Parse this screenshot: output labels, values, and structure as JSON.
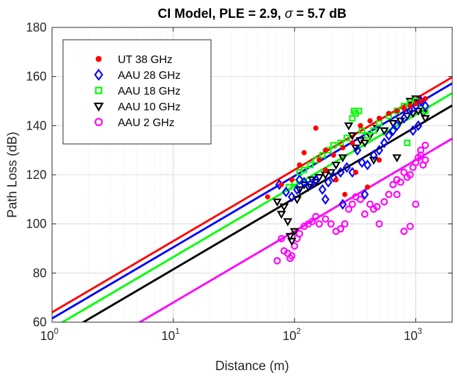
{
  "chart_data": {
    "type": "scatter",
    "title": "CI Model, PLE = 2.9, σ = 5.7 dB",
    "xlabel": "Distance (m)",
    "ylabel": "Path Loss (dB)",
    "xscale": "log",
    "xlim": [
      1,
      2000
    ],
    "ylim": [
      60,
      180
    ],
    "xticks": [
      1,
      10,
      100,
      1000
    ],
    "xtick_labels": [
      [
        "10",
        "0"
      ],
      [
        "10",
        "1"
      ],
      [
        "10",
        "2"
      ],
      [
        "10",
        "3"
      ]
    ],
    "yticks": [
      60,
      80,
      100,
      120,
      140,
      160,
      180
    ],
    "ytick_labels": [
      "60",
      "80",
      "100",
      "120",
      "140",
      "160",
      "180"
    ],
    "grid": true,
    "legend_position": "top-left",
    "series": [
      {
        "name": "UT 38 GHz",
        "color": "#ff0000",
        "marker": "asterisk",
        "points": [
          [
            60,
            111
          ],
          [
            78,
            116
          ],
          [
            95,
            118
          ],
          [
            110,
            124
          ],
          [
            120,
            129
          ],
          [
            150,
            139
          ],
          [
            180,
            130
          ],
          [
            210,
            128
          ],
          [
            250,
            131
          ],
          [
            300,
            133
          ],
          [
            350,
            140
          ],
          [
            420,
            142
          ],
          [
            500,
            143
          ],
          [
            600,
            145
          ],
          [
            700,
            146
          ],
          [
            800,
            147
          ],
          [
            900,
            148
          ],
          [
            1000,
            149
          ],
          [
            1100,
            150
          ],
          [
            1200,
            151
          ],
          [
            180,
            122
          ],
          [
            220,
            118
          ],
          [
            260,
            112
          ],
          [
            320,
            121
          ],
          [
            400,
            115
          ],
          [
            160,
            126
          ],
          [
            500,
            126
          ]
        ]
      },
      {
        "name": "AAU 28 GHz",
        "color": "#0000ff",
        "marker": "diamond",
        "points": [
          [
            75,
            116
          ],
          [
            85,
            113
          ],
          [
            95,
            111
          ],
          [
            105,
            114
          ],
          [
            110,
            118
          ],
          [
            120,
            117
          ],
          [
            135,
            116
          ],
          [
            150,
            118
          ],
          [
            170,
            114
          ],
          [
            190,
            117
          ],
          [
            210,
            119
          ],
          [
            240,
            121
          ],
          [
            270,
            123
          ],
          [
            300,
            121
          ],
          [
            330,
            130
          ],
          [
            360,
            125
          ],
          [
            400,
            124
          ],
          [
            450,
            128
          ],
          [
            500,
            130
          ],
          [
            550,
            133
          ],
          [
            600,
            136
          ],
          [
            650,
            138
          ],
          [
            700,
            140
          ],
          [
            800,
            143
          ],
          [
            900,
            146
          ],
          [
            1000,
            148
          ],
          [
            1100,
            150
          ],
          [
            1200,
            148
          ],
          [
            180,
            110
          ],
          [
            250,
            108
          ],
          [
            380,
            112
          ],
          [
            1050,
            140
          ],
          [
            950,
            138
          ]
        ]
      },
      {
        "name": "AAU 18 GHz",
        "color": "#00ff00",
        "marker": "square",
        "points": [
          [
            90,
            115
          ],
          [
            100,
            117
          ],
          [
            110,
            121
          ],
          [
            120,
            122
          ],
          [
            135,
            124
          ],
          [
            150,
            126
          ],
          [
            170,
            128
          ],
          [
            190,
            130
          ],
          [
            210,
            132
          ],
          [
            240,
            133
          ],
          [
            270,
            135
          ],
          [
            300,
            143
          ],
          [
            310,
            146
          ],
          [
            320,
            145
          ],
          [
            340,
            146
          ],
          [
            360,
            138
          ],
          [
            400,
            136
          ],
          [
            450,
            138
          ],
          [
            500,
            141
          ],
          [
            600,
            144
          ],
          [
            700,
            146
          ],
          [
            800,
            148
          ],
          [
            900,
            149
          ],
          [
            1000,
            150
          ],
          [
            1100,
            149
          ],
          [
            850,
            133
          ],
          [
            1200,
            146
          ]
        ]
      },
      {
        "name": "AAU 10 GHz",
        "color": "#000000",
        "marker": "triangle-down",
        "points": [
          [
            72,
            109
          ],
          [
            78,
            104
          ],
          [
            82,
            107
          ],
          [
            88,
            101
          ],
          [
            92,
            95
          ],
          [
            95,
            93
          ],
          [
            100,
            97
          ],
          [
            105,
            110
          ],
          [
            110,
            114
          ],
          [
            120,
            116
          ],
          [
            130,
            115
          ],
          [
            140,
            118
          ],
          [
            150,
            117
          ],
          [
            160,
            119
          ],
          [
            180,
            120
          ],
          [
            200,
            121
          ],
          [
            220,
            124
          ],
          [
            250,
            127
          ],
          [
            280,
            140
          ],
          [
            300,
            136
          ],
          [
            320,
            131
          ],
          [
            350,
            134
          ],
          [
            380,
            133
          ],
          [
            420,
            136
          ],
          [
            480,
            139
          ],
          [
            550,
            138
          ],
          [
            650,
            141
          ],
          [
            750,
            142
          ],
          [
            850,
            144
          ],
          [
            950,
            145
          ],
          [
            1050,
            146
          ],
          [
            1150,
            145
          ],
          [
            900,
            150
          ],
          [
            1000,
            151
          ],
          [
            450,
            126
          ],
          [
            700,
            127
          ],
          [
            1200,
            143
          ]
        ]
      },
      {
        "name": "AAU 2 GHz",
        "color": "#ff00ff",
        "marker": "circle",
        "points": [
          [
            72,
            85
          ],
          [
            78,
            94
          ],
          [
            82,
            89
          ],
          [
            88,
            88
          ],
          [
            92,
            86
          ],
          [
            95,
            87
          ],
          [
            100,
            91
          ],
          [
            105,
            94
          ],
          [
            110,
            96
          ],
          [
            120,
            99
          ],
          [
            130,
            100
          ],
          [
            140,
            101
          ],
          [
            150,
            103
          ],
          [
            160,
            100
          ],
          [
            180,
            102
          ],
          [
            200,
            100
          ],
          [
            220,
            97
          ],
          [
            240,
            98
          ],
          [
            260,
            100
          ],
          [
            280,
            106
          ],
          [
            300,
            108
          ],
          [
            320,
            111
          ],
          [
            350,
            110
          ],
          [
            380,
            104
          ],
          [
            420,
            108
          ],
          [
            450,
            106
          ],
          [
            480,
            107
          ],
          [
            500,
            100
          ],
          [
            550,
            109
          ],
          [
            600,
            112
          ],
          [
            650,
            116
          ],
          [
            700,
            118
          ],
          [
            750,
            117
          ],
          [
            800,
            121
          ],
          [
            850,
            119
          ],
          [
            900,
            120
          ],
          [
            950,
            123
          ],
          [
            1000,
            125
          ],
          [
            1050,
            127
          ],
          [
            1100,
            128
          ],
          [
            1150,
            124
          ],
          [
            1200,
            126
          ],
          [
            800,
            97
          ],
          [
            900,
            99
          ],
          [
            1000,
            108
          ],
          [
            1100,
            130
          ],
          [
            1200,
            132
          ],
          [
            700,
            112
          ]
        ]
      }
    ],
    "fit_lines": [
      {
        "color": "#ff0000",
        "intercept_dB_at_1m": 64.0,
        "slope_dB_per_decade": 29
      },
      {
        "color": "#0000ff",
        "intercept_dB_at_1m": 61.5,
        "slope_dB_per_decade": 29
      },
      {
        "color": "#00ff00",
        "intercept_dB_at_1m": 57.5,
        "slope_dB_per_decade": 29
      },
      {
        "color": "#000000",
        "intercept_dB_at_1m": 52.5,
        "slope_dB_per_decade": 29
      },
      {
        "color": "#ff00ff",
        "intercept_dB_at_1m": 39.0,
        "slope_dB_per_decade": 29
      }
    ]
  }
}
